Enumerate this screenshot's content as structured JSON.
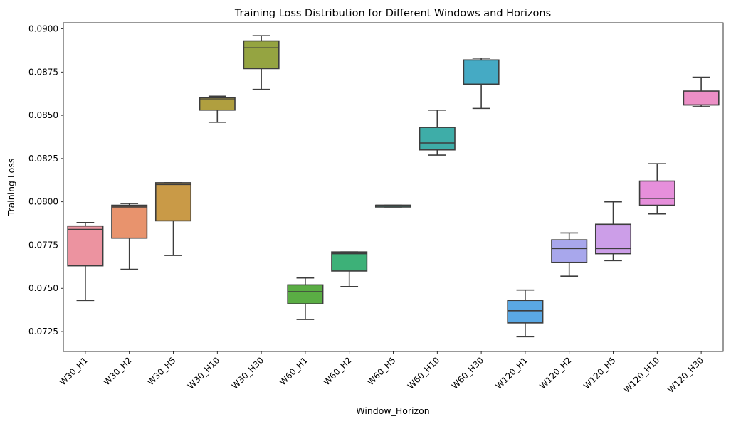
{
  "chart_data": {
    "type": "box",
    "title": "Training Loss Distribution for Different Windows and Horizons",
    "xlabel": "Window_Horizon",
    "ylabel": "Training Loss",
    "ylim": [
      0.07135,
      0.09035
    ],
    "yticks": [
      0.0725,
      0.075,
      0.0775,
      0.08,
      0.0825,
      0.085,
      0.0875,
      0.09
    ],
    "ytick_labels": [
      "0.0725",
      "0.0750",
      "0.0775",
      "0.0800",
      "0.0825",
      "0.0850",
      "0.0875",
      "0.0900"
    ],
    "grid": false,
    "categories": [
      "W30_H1",
      "W30_H2",
      "W30_H5",
      "W30_H10",
      "W30_H30",
      "W60_H1",
      "W60_H2",
      "W60_H5",
      "W60_H10",
      "W60_H30",
      "W120_H1",
      "W120_H2",
      "W120_H5",
      "W120_H10",
      "W120_H30"
    ],
    "boxes": [
      {
        "category": "W30_H1",
        "color": "#ec93a0",
        "whisker_low": 0.0743,
        "q1": 0.0763,
        "median": 0.0784,
        "q3": 0.0786,
        "whisker_high": 0.0788
      },
      {
        "category": "W30_H2",
        "color": "#e8936d",
        "whisker_low": 0.0761,
        "q1": 0.0779,
        "median": 0.0797,
        "q3": 0.0798,
        "whisker_high": 0.0799
      },
      {
        "category": "W30_H5",
        "color": "#c99a47",
        "whisker_low": 0.0769,
        "q1": 0.0789,
        "median": 0.081,
        "q3": 0.0811,
        "whisker_high": 0.0811
      },
      {
        "category": "W30_H10",
        "color": "#b09f3f",
        "whisker_low": 0.0846,
        "q1": 0.0853,
        "median": 0.0859,
        "q3": 0.086,
        "whisker_high": 0.0861
      },
      {
        "category": "W30_H30",
        "color": "#95a441",
        "whisker_low": 0.0865,
        "q1": 0.0877,
        "median": 0.0889,
        "q3": 0.0893,
        "whisker_high": 0.0896
      },
      {
        "category": "W60_H1",
        "color": "#5aad44",
        "whisker_low": 0.0732,
        "q1": 0.0741,
        "median": 0.0748,
        "q3": 0.0752,
        "whisker_high": 0.0756
      },
      {
        "category": "W60_H2",
        "color": "#3db178",
        "whisker_low": 0.0751,
        "q1": 0.076,
        "median": 0.077,
        "q3": 0.0771,
        "whisker_high": 0.0771
      },
      {
        "category": "W60_H5",
        "color": "#3cb09a",
        "whisker_low": 0.0797,
        "q1": 0.0797,
        "median": 0.0798,
        "q3": 0.0798,
        "whisker_high": 0.0798
      },
      {
        "category": "W60_H10",
        "color": "#3eada8",
        "whisker_low": 0.0827,
        "q1": 0.083,
        "median": 0.0834,
        "q3": 0.0843,
        "whisker_high": 0.0853
      },
      {
        "category": "W60_H30",
        "color": "#45aac4",
        "whisker_low": 0.0854,
        "q1": 0.0868,
        "median": 0.0882,
        "q3": 0.0882,
        "whisker_high": 0.0883
      },
      {
        "category": "W120_H1",
        "color": "#5aa8e4",
        "whisker_low": 0.0722,
        "q1": 0.073,
        "median": 0.0737,
        "q3": 0.0743,
        "whisker_high": 0.0749
      },
      {
        "category": "W120_H2",
        "color": "#a8a7ec",
        "whisker_low": 0.0757,
        "q1": 0.0765,
        "median": 0.0773,
        "q3": 0.0778,
        "whisker_high": 0.0782
      },
      {
        "category": "W120_H5",
        "color": "#cc9ee8",
        "whisker_low": 0.0766,
        "q1": 0.077,
        "median": 0.0773,
        "q3": 0.0787,
        "whisker_high": 0.08
      },
      {
        "category": "W120_H10",
        "color": "#e68fdb",
        "whisker_low": 0.0793,
        "q1": 0.0798,
        "median": 0.0802,
        "q3": 0.0812,
        "whisker_high": 0.0822
      },
      {
        "category": "W120_H30",
        "color": "#ec8fc6",
        "whisker_low": 0.0855,
        "q1": 0.0856,
        "median": 0.0856,
        "q3": 0.0864,
        "whisker_high": 0.0872
      }
    ]
  }
}
